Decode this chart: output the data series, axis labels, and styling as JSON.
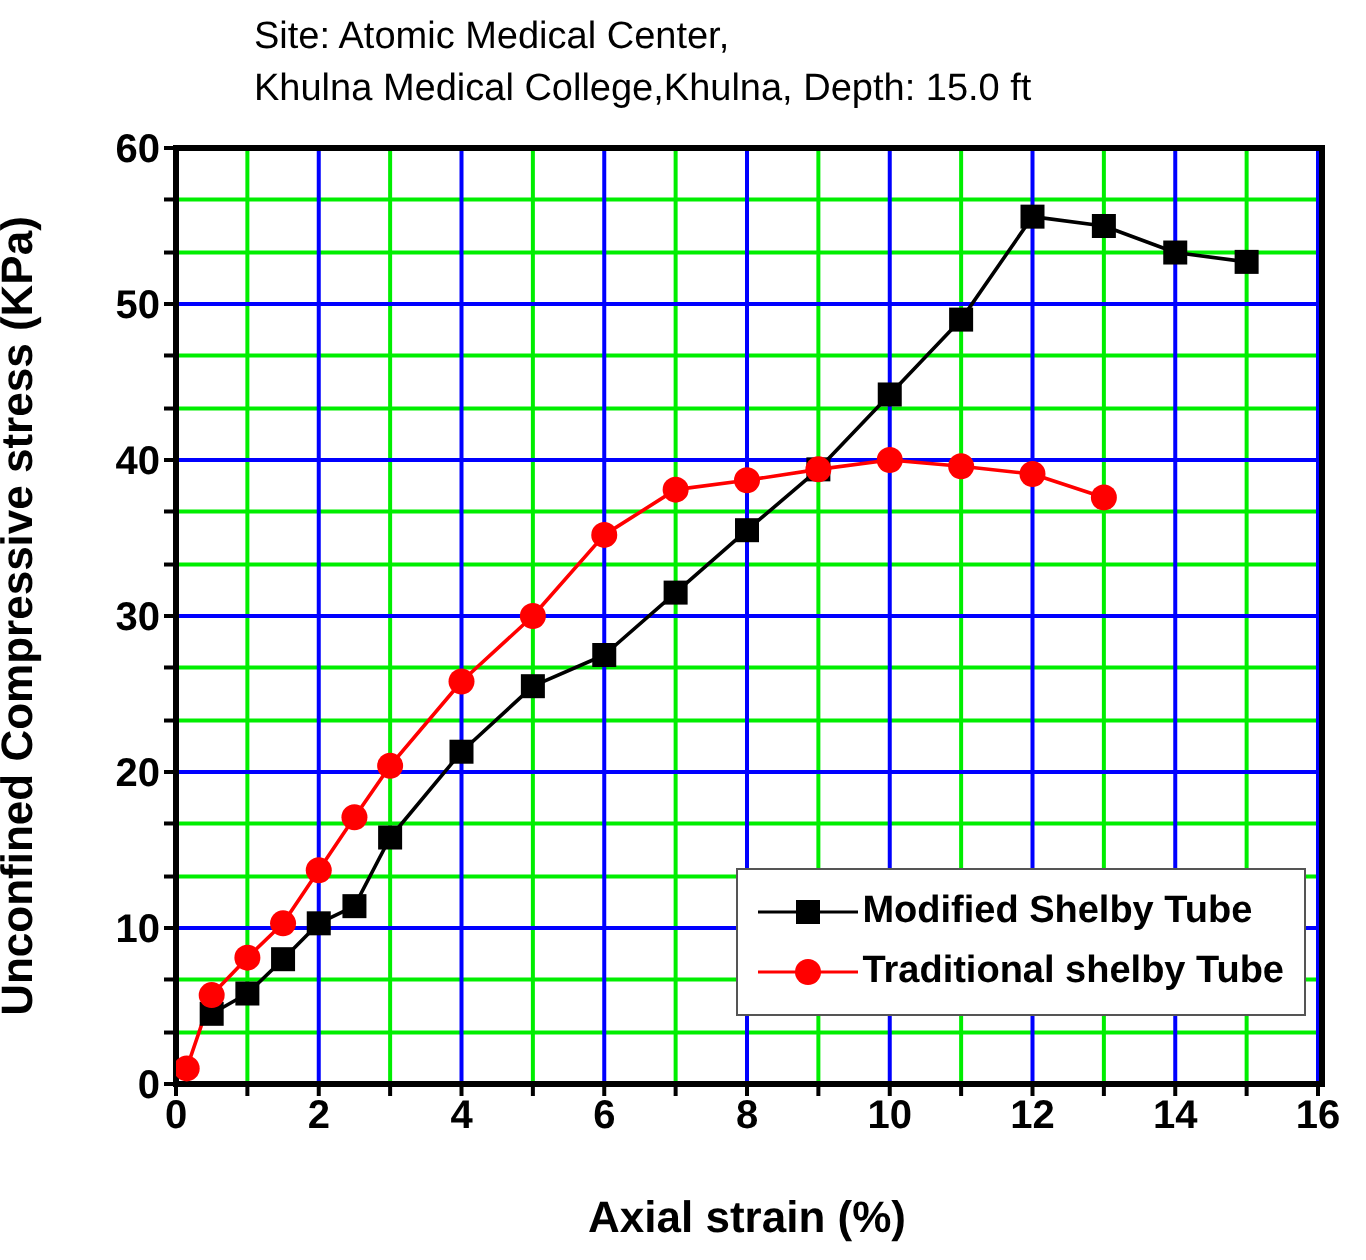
{
  "chart_data": {
    "type": "line",
    "title": "Site: Atomic Medical Center,",
    "subtitle": "Khulna Medical College,Khulna, Depth: 15.0 ft",
    "xlabel": "Axial strain (%)",
    "ylabel": "Unconfined Compressive stress (KPa)",
    "xlim": [
      0,
      16
    ],
    "ylim": [
      0,
      60
    ],
    "xticks": [
      0,
      {
        "value": 1,
        "label": null
      },
      2,
      {
        "value": 3,
        "label": null
      },
      4,
      {
        "value": 5,
        "label": null
      },
      6,
      {
        "value": 7,
        "label": null
      },
      8,
      {
        "value": 9,
        "label": null
      },
      10,
      {
        "value": 11,
        "label": null
      },
      12,
      {
        "value": 13,
        "label": null
      },
      14,
      {
        "value": 15,
        "label": null
      },
      16
    ],
    "yticks": [
      0,
      {
        "value": 3.3,
        "label": null
      },
      {
        "value": 6.7,
        "label": null
      },
      10,
      {
        "value": 13.3,
        "label": null
      },
      {
        "value": 16.7,
        "label": null
      },
      20,
      {
        "value": 23.3,
        "label": null
      },
      {
        "value": 26.7,
        "label": null
      },
      30,
      {
        "value": 33.3,
        "label": null
      },
      {
        "value": 36.7,
        "label": null
      },
      40,
      {
        "value": 43.3,
        "label": null
      },
      {
        "value": 46.7,
        "label": null
      },
      50,
      {
        "value": 53.3,
        "label": null
      },
      {
        "value": 56.7,
        "label": null
      },
      60
    ],
    "grid": true,
    "legend": "bottom right",
    "line_style": "solid",
    "series": [
      {
        "name": "Modified Shelby Tube",
        "color": "#000000",
        "marker": "square",
        "x": [
          0.5,
          1,
          1.5,
          2,
          2.5,
          3,
          4,
          5,
          6,
          7,
          8,
          9,
          10,
          11,
          12,
          13,
          14,
          15
        ],
        "values": [
          4.5,
          5.8,
          8.0,
          10.3,
          11.4,
          15.8,
          21.3,
          25.5,
          27.5,
          31.5,
          35.5,
          39.4,
          44.2,
          49.0,
          55.6,
          55.0,
          53.3,
          52.7
        ]
      },
      {
        "name": "Traditional shelby Tube",
        "color": "#ff0000",
        "marker": "circle",
        "x": [
          0.15,
          0.5,
          1,
          1.5,
          2,
          2.5,
          3,
          4,
          5,
          6,
          7,
          8,
          9,
          10,
          11,
          12,
          13
        ],
        "values": [
          1.0,
          5.7,
          8.1,
          10.3,
          13.7,
          17.1,
          20.4,
          25.8,
          30.0,
          35.2,
          38.1,
          38.7,
          39.4,
          40.0,
          39.6,
          39.1,
          37.6
        ]
      }
    ]
  }
}
